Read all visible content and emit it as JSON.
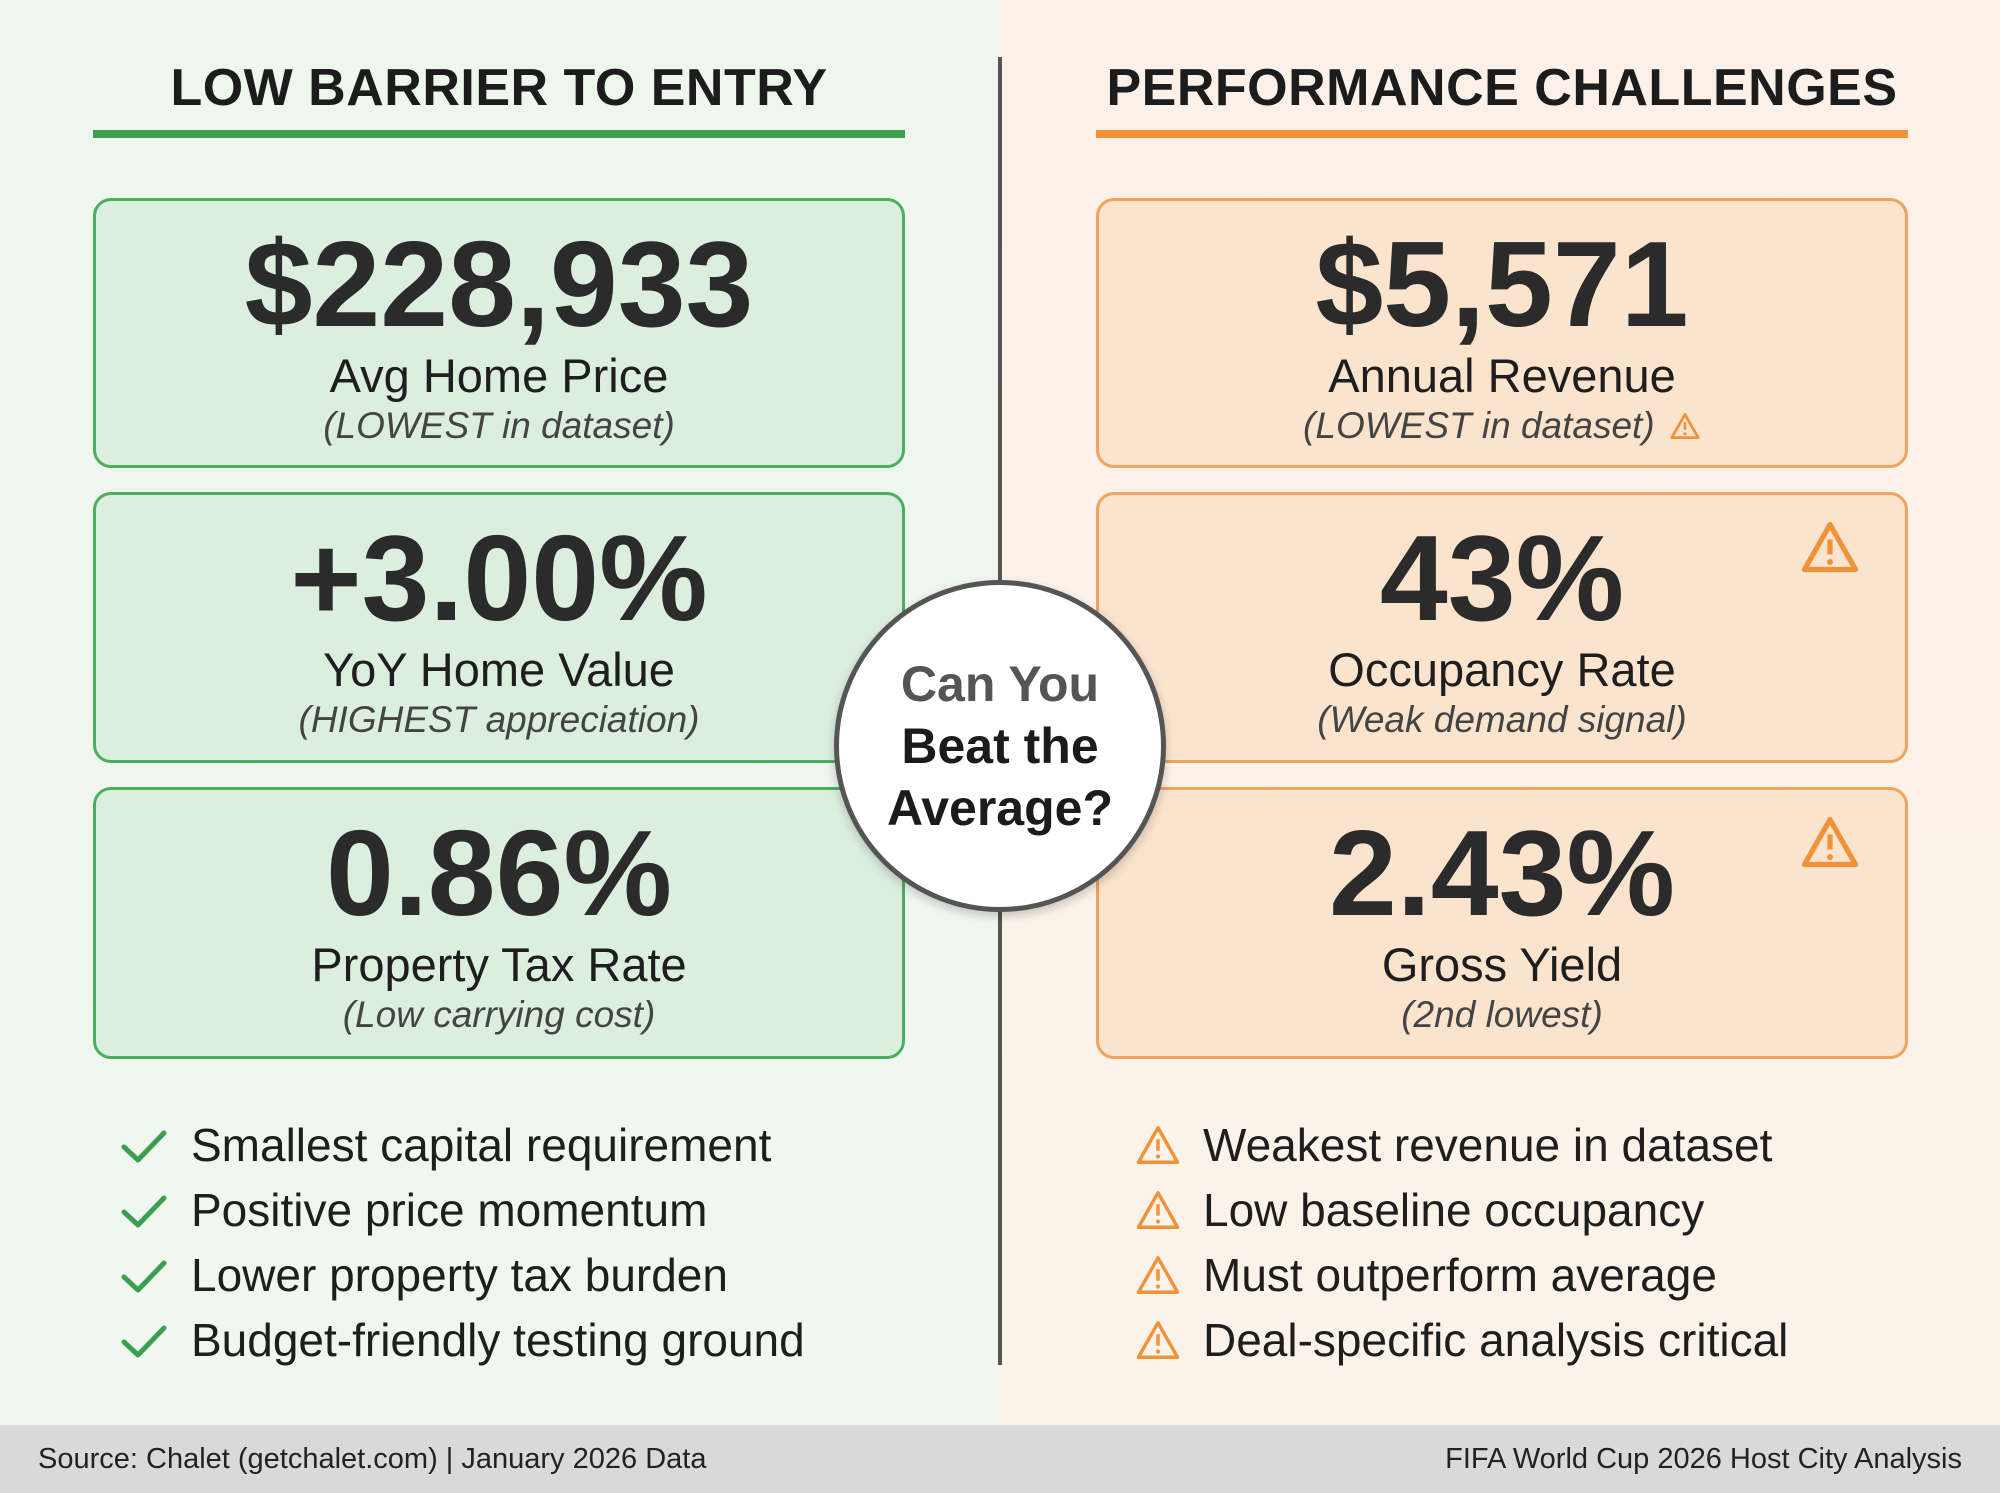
{
  "left": {
    "title": "LOW BARRIER TO ENTRY",
    "accent": "#3aa04f",
    "cards": [
      {
        "value": "$228,933",
        "label": "Avg Home Price",
        "note": "(LOWEST in dataset)"
      },
      {
        "value": "+3.00%",
        "label": "YoY Home Value",
        "note": "(HIGHEST appreciation)"
      },
      {
        "value": "0.86%",
        "label": "Property Tax Rate",
        "note": "(Low carrying cost)"
      }
    ],
    "bullets": [
      "Smallest capital requirement",
      "Positive price momentum",
      "Lower property tax burden",
      "Budget-friendly testing ground"
    ],
    "bullet_icon": "check-icon"
  },
  "right": {
    "title": "PERFORMANCE CHALLENGES",
    "accent": "#f0923a",
    "cards": [
      {
        "value": "$5,571",
        "label": "Annual Revenue",
        "note": "(LOWEST in dataset)"
      },
      {
        "value": "43%",
        "label": "Occupancy Rate",
        "note": "(Weak demand signal)"
      },
      {
        "value": "2.43%",
        "label": "Gross Yield",
        "note": "(2nd lowest)"
      }
    ],
    "bullets": [
      "Weakest revenue in dataset",
      "Low baseline occupancy",
      "Must outperform average",
      "Deal-specific analysis critical"
    ],
    "bullet_icon": "warning-icon"
  },
  "center": {
    "line1": "Can You",
    "line2": "Beat the",
    "line3": "Average?"
  },
  "footer": {
    "source": "Source: Chalet (getchalet.com) | January 2026 Data",
    "context": "FIFA World Cup 2026 Host City Analysis"
  }
}
